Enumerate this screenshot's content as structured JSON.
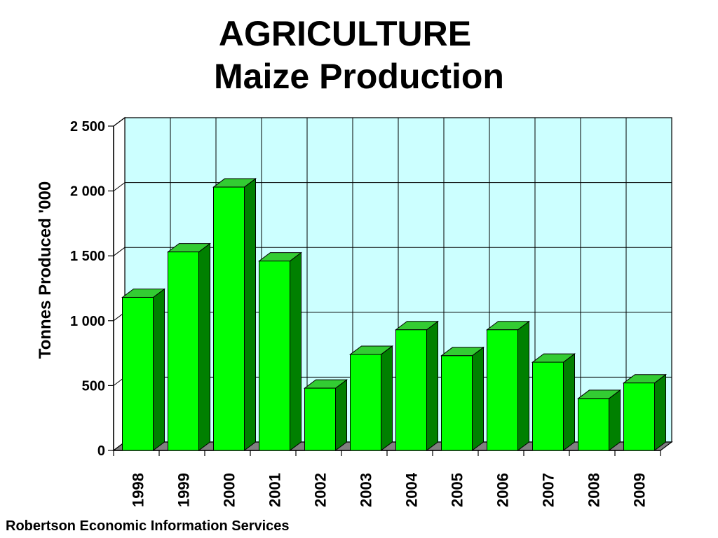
{
  "title": {
    "line1": "AGRICULTURE",
    "line2": "Maize Production"
  },
  "footer": "Robertson Economic Information Services",
  "colors": {
    "plot_background": "#ccffff",
    "bar_front": "#00ff00",
    "bar_top": "#33cc33",
    "bar_side": "#008000",
    "floor": "#808080"
  },
  "chart_data": {
    "type": "bar",
    "title": "AGRICULTURE Maize Production",
    "xlabel": "",
    "ylabel": "Tonnes Produced '000",
    "categories": [
      "1998",
      "1999",
      "2000",
      "2001",
      "2002",
      "2003",
      "2004",
      "2005",
      "2006",
      "2007",
      "2008",
      "2009"
    ],
    "values": [
      1180,
      1530,
      2030,
      1460,
      480,
      740,
      930,
      730,
      930,
      680,
      400,
      520
    ],
    "ylim": [
      0,
      2500
    ],
    "yticks": [
      0,
      500,
      1000,
      1500,
      2000,
      2500
    ],
    "ytick_labels": [
      "0",
      "500",
      "1 000",
      "1 500",
      "2 000",
      "2 500"
    ],
    "grid": true,
    "legend": "none",
    "style": "3d"
  }
}
